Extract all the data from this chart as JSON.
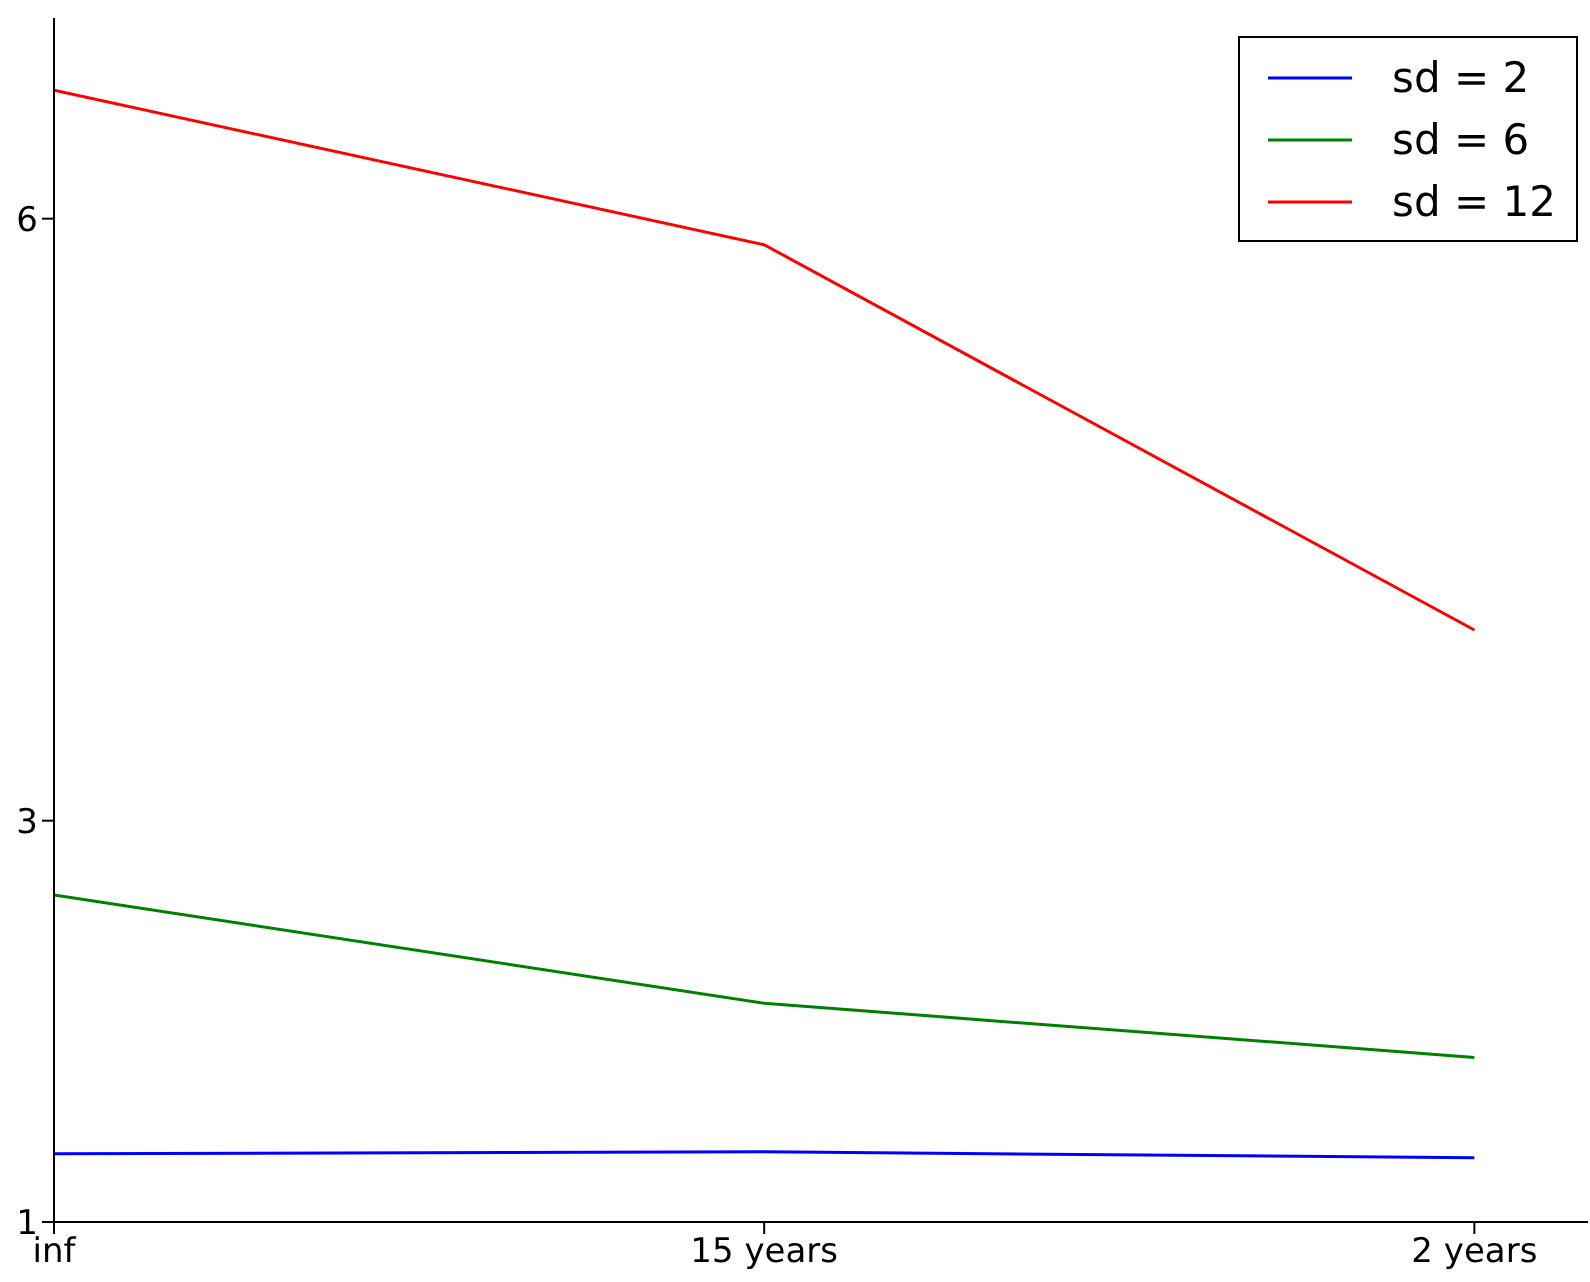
{
  "chart_data": {
    "type": "line",
    "categories": [
      "inf",
      "15 years",
      "2 years"
    ],
    "ylim": [
      1,
      7
    ],
    "yticks": [
      1,
      3,
      6
    ],
    "series": [
      {
        "name": "sd = 2",
        "color": "#0000ff",
        "values": [
          1.34,
          1.35,
          1.32
        ]
      },
      {
        "name": "sd = 6",
        "color": "#008000",
        "values": [
          2.63,
          2.09,
          1.82
        ]
      },
      {
        "name": "sd = 12",
        "color": "#ff0000",
        "values": [
          6.64,
          5.87,
          3.95
        ]
      }
    ],
    "legend": "top right",
    "grid": false,
    "marker": "none",
    "line_style": "solid"
  }
}
